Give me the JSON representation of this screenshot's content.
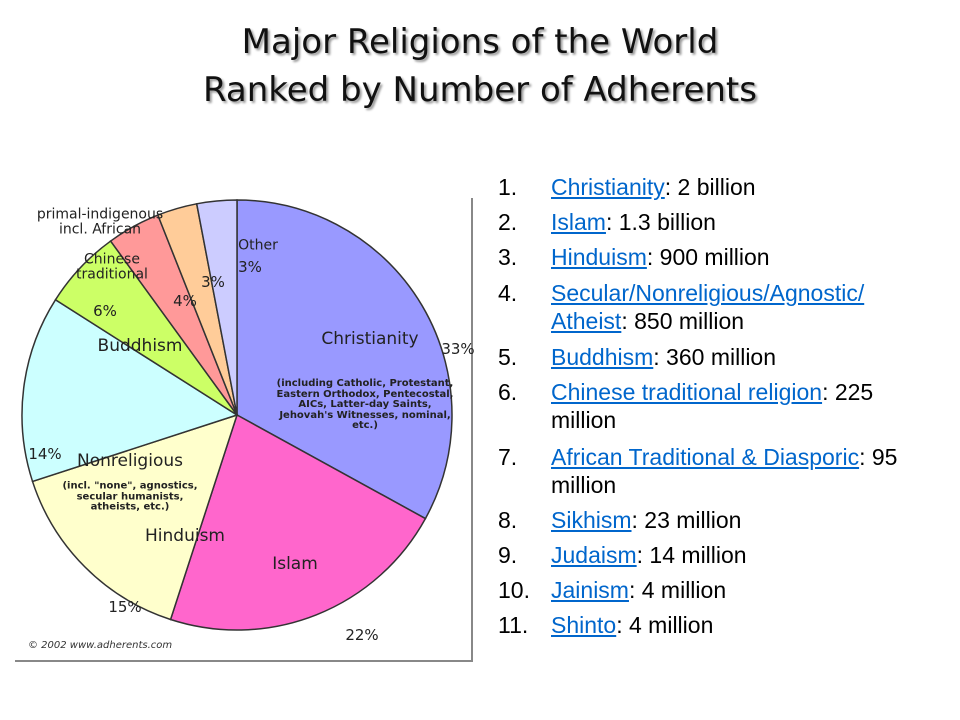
{
  "title": [
    "Major Religions of the World",
    "Ranked by Number of Adherents"
  ],
  "chart_data": {
    "type": "pie",
    "categories": [
      "Christianity",
      "Islam",
      "Hinduism",
      "Nonreligious",
      "Buddhism",
      "Chinese traditional",
      "primal-indigenous incl. African",
      "Other"
    ],
    "values": [
      33,
      22,
      15,
      14,
      6,
      4,
      3,
      3
    ],
    "value_labels": [
      "33%",
      "22%",
      "15%",
      "14%",
      "6%",
      "4%",
      "3%",
      "3%"
    ],
    "colors": [
      "#9999ff",
      "#ff66cc",
      "#ffffcc",
      "#ccffff",
      "#ccff66",
      "#ff9999",
      "#ffcc99",
      "#ccccff"
    ],
    "annotations": [
      "(including Catholic, Protestant, Eastern Orthodox, Pentecostal, AICs, Latter-day Saints, Jehovah's Witnesses, nominal, etc.)",
      "(incl. \"none\", agnostics, secular humanists, atheists, etc.)"
    ],
    "credit": "© 2002 www.adherents.com"
  },
  "list": [
    {
      "number": "1.",
      "link": "Christianity",
      "text": ": 2 billion"
    },
    {
      "number": "2.",
      "link": "Islam",
      "text": ": 1.3 billion"
    },
    {
      "number": "3.",
      "link": "Hinduism",
      "text": ": 900 million"
    },
    {
      "number": "4.",
      "link": "Secular/Nonreligious/Agnostic/ Atheist",
      "text": ": 850 million"
    },
    {
      "number": "5.",
      "link": "Buddhism",
      "text": ": 360 million"
    },
    {
      "number": "6.",
      "link": "Chinese traditional religion",
      "text": ": 225 million"
    },
    {
      "number": "7.",
      "link": "African Traditional & Diasporic",
      "text": ": 95 million"
    },
    {
      "number": "8.",
      "link": "Sikhism",
      "text": ": 23 million"
    },
    {
      "number": "9.",
      "link": "Judaism",
      "text": ": 14 million"
    },
    {
      "number": "10.",
      "link": "Jainism",
      "text": ": 4 million"
    },
    {
      "number": "11.",
      "link": "Shinto",
      "text": ": 4 million"
    }
  ]
}
